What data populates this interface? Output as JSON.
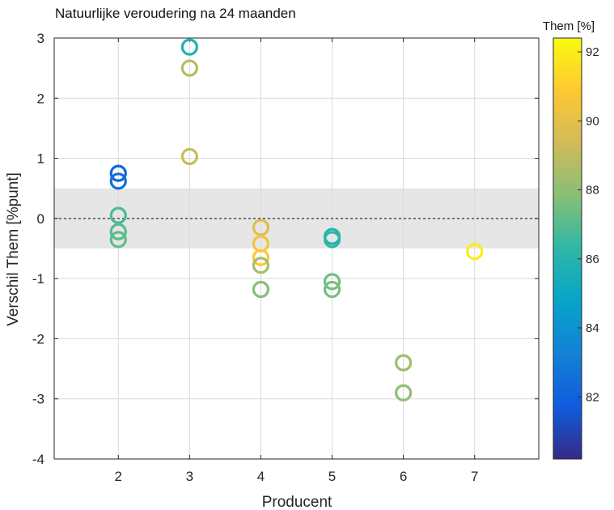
{
  "chart_data": {
    "type": "scatter",
    "title": "Natuurlijke veroudering na 24 maanden",
    "xlabel": "Producent",
    "ylabel": "Verschil Them [%punt]",
    "xlim": [
      1.1,
      7.9
    ],
    "ylim": [
      -4,
      3
    ],
    "xticks": [
      2,
      3,
      4,
      5,
      6,
      7
    ],
    "yticks": [
      -4,
      -3,
      -2,
      -1,
      0,
      1,
      2,
      3
    ],
    "grid": true,
    "reference_band": {
      "y_from": -0.5,
      "y_to": 0.5,
      "color": "#e6e6e6"
    },
    "reference_line": {
      "y": 0,
      "style": "dashed"
    },
    "colorbar": {
      "title": "Them [%]",
      "range": [
        80.2,
        92.4
      ],
      "ticks": [
        82,
        84,
        86,
        88,
        90,
        92
      ],
      "tick_labels": [
        "82",
        "84",
        "86",
        "88",
        "90",
        "92"
      ],
      "colormap": [
        "#352a87",
        "#0f5cdd",
        "#1481d6",
        "#06a4ca",
        "#2eb7a4",
        "#87bf77",
        "#d1bb59",
        "#fec832",
        "#f9fb0e"
      ]
    },
    "points": [
      {
        "x": 2,
        "y": 0.75,
        "c": 82.2
      },
      {
        "x": 2,
        "y": 0.62,
        "c": 82.5
      },
      {
        "x": 2,
        "y": 0.05,
        "c": 86.8
      },
      {
        "x": 2,
        "y": -0.22,
        "c": 87.0
      },
      {
        "x": 2,
        "y": -0.35,
        "c": 87.2
      },
      {
        "x": 3,
        "y": 2.85,
        "c": 85.8
      },
      {
        "x": 3,
        "y": 2.5,
        "c": 88.8
      },
      {
        "x": 3,
        "y": 1.03,
        "c": 89.2
      },
      {
        "x": 4,
        "y": -0.15,
        "c": 89.8
      },
      {
        "x": 4,
        "y": -0.42,
        "c": 90.5
      },
      {
        "x": 4,
        "y": -0.65,
        "c": 90.8
      },
      {
        "x": 4,
        "y": -0.78,
        "c": 88.5
      },
      {
        "x": 4,
        "y": -1.18,
        "c": 87.8
      },
      {
        "x": 5,
        "y": -0.3,
        "c": 86.0
      },
      {
        "x": 5,
        "y": -0.35,
        "c": 86.3
      },
      {
        "x": 5,
        "y": -1.05,
        "c": 87.5
      },
      {
        "x": 5,
        "y": -1.18,
        "c": 87.6
      },
      {
        "x": 6,
        "y": -2.4,
        "c": 88.3
      },
      {
        "x": 6,
        "y": -2.9,
        "c": 88.0
      },
      {
        "x": 7,
        "y": -0.55,
        "c": 92.0
      }
    ]
  }
}
